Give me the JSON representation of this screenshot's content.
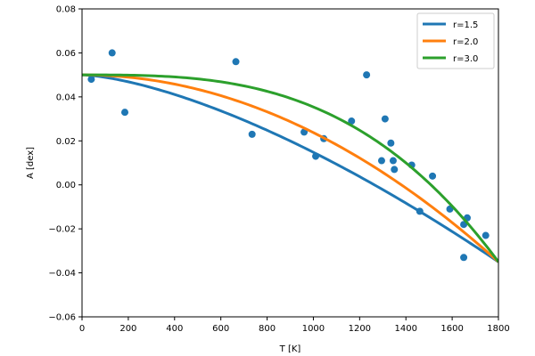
{
  "chart_data": {
    "type": "scatter",
    "xlabel": "T [K]",
    "ylabel": "A [dex]",
    "xlim": [
      0,
      1800
    ],
    "ylim": [
      -0.06,
      0.08
    ],
    "x_ticks": [
      0,
      200,
      400,
      600,
      800,
      1000,
      1200,
      1400,
      1600,
      1800
    ],
    "y_ticks": [
      -0.06,
      -0.04,
      -0.02,
      0.0,
      0.02,
      0.04,
      0.06,
      0.08
    ],
    "y_tick_labels": [
      "−0.06",
      "−0.04",
      "−0.02",
      "0.00",
      "0.02",
      "0.04",
      "0.06",
      "0.08"
    ],
    "grid": false,
    "legend_position": "top-right",
    "scatter": {
      "color": "#1f77b4",
      "points": [
        [
          40,
          0.048
        ],
        [
          130,
          0.06
        ],
        [
          185,
          0.033
        ],
        [
          665,
          0.056
        ],
        [
          735,
          0.023
        ],
        [
          960,
          0.024
        ],
        [
          1010,
          0.013
        ],
        [
          1045,
          0.021
        ],
        [
          1165,
          0.029
        ],
        [
          1230,
          0.05
        ],
        [
          1295,
          0.011
        ],
        [
          1310,
          0.03
        ],
        [
          1335,
          0.019
        ],
        [
          1345,
          0.011
        ],
        [
          1350,
          0.007
        ],
        [
          1425,
          0.009
        ],
        [
          1460,
          -0.012
        ],
        [
          1515,
          0.004
        ],
        [
          1590,
          -0.011
        ],
        [
          1650,
          -0.018
        ],
        [
          1650,
          -0.033
        ],
        [
          1665,
          -0.015
        ],
        [
          1745,
          -0.023
        ]
      ]
    },
    "series": [
      {
        "name": "r=1.5",
        "color": "#1f77b4",
        "exponent": 1.5,
        "y_start": 0.05,
        "y_end": -0.035
      },
      {
        "name": "r=2.0",
        "color": "#ff7f0e",
        "exponent": 2.0,
        "y_start": 0.05,
        "y_end": -0.035
      },
      {
        "name": "r=3.0",
        "color": "#2ca02c",
        "exponent": 3.0,
        "y_start": 0.05,
        "y_end": -0.035
      }
    ]
  }
}
